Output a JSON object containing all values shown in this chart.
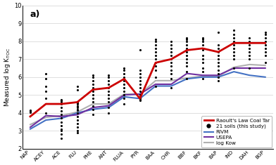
{
  "categories": [
    "NAP",
    "ACEY",
    "ACE",
    "FLU",
    "PHE",
    "ANT",
    "FLUA",
    "PYR",
    "BAA",
    "CHR",
    "BBF",
    "BKF",
    "BAP",
    "IND",
    "DAH",
    "BGP"
  ],
  "raoult_coal_tar": [
    3.8,
    4.5,
    4.5,
    4.6,
    5.3,
    5.4,
    5.9,
    4.8,
    6.8,
    7.0,
    7.5,
    7.6,
    7.4,
    7.9,
    7.9,
    7.9
  ],
  "rivm": [
    3.1,
    3.6,
    3.7,
    4.0,
    4.2,
    4.3,
    4.9,
    4.8,
    5.5,
    5.5,
    5.9,
    6.0,
    6.0,
    6.3,
    6.1,
    6.0
  ],
  "usepa": [
    3.2,
    3.85,
    3.8,
    3.9,
    4.3,
    4.4,
    5.0,
    5.05,
    5.6,
    5.6,
    6.2,
    6.1,
    6.1,
    6.5,
    6.5,
    6.5
  ],
  "log_kow": [
    3.35,
    3.75,
    3.85,
    4.05,
    4.5,
    4.5,
    5.05,
    5.05,
    5.8,
    5.8,
    5.95,
    6.05,
    6.05,
    6.55,
    6.7,
    6.65
  ],
  "soil_data": {
    "NAP": [
      4.05,
      4.1,
      4.15
    ],
    "ACEY": [
      4.0,
      4.8,
      5.2,
      5.5,
      5.9,
      6.2
    ],
    "ACE": [
      2.6,
      2.8,
      3.0,
      3.1,
      3.3,
      3.5,
      3.7,
      3.9,
      4.1,
      4.3,
      4.5,
      4.6,
      4.7,
      4.75
    ],
    "FLU": [
      2.9,
      3.0,
      3.2,
      3.4,
      3.6,
      3.8,
      4.0,
      4.15,
      4.2,
      4.3,
      4.4,
      4.5,
      4.55,
      4.6,
      5.3,
      5.5
    ],
    "PHE": [
      3.9,
      4.2,
      4.4,
      4.6,
      4.8,
      5.0,
      5.2,
      5.4,
      5.6,
      5.8,
      6.0,
      6.1
    ],
    "ANT": [
      4.0,
      4.3,
      4.6,
      4.8,
      5.0,
      5.2,
      5.4,
      5.6,
      5.8,
      6.0,
      6.1
    ],
    "FLUA": [
      4.5,
      4.8,
      5.0,
      5.2,
      5.4,
      5.6,
      5.8,
      6.0,
      6.2,
      6.4,
      6.5
    ],
    "PYR": [
      4.7,
      4.75,
      4.8,
      4.9,
      5.0,
      5.2,
      5.4,
      5.6,
      5.8,
      6.0,
      6.2,
      6.4,
      7.5
    ],
    "BAA": [
      5.5,
      6.0,
      6.4,
      6.6,
      6.8,
      7.0,
      7.2,
      7.4,
      7.6,
      7.8,
      8.0,
      8.1
    ],
    "CHR": [
      5.4,
      5.9,
      6.2,
      6.4,
      6.6,
      6.8,
      7.0,
      7.2,
      7.4,
      7.6,
      7.8,
      8.0
    ],
    "BBF": [
      5.9,
      6.3,
      6.6,
      6.8,
      7.0,
      7.2,
      7.4,
      7.6,
      7.8,
      8.0,
      8.1,
      8.2
    ],
    "BKF": [
      5.9,
      6.3,
      6.5,
      6.8,
      7.0,
      7.2,
      7.5,
      7.8,
      8.0,
      8.1,
      8.2
    ],
    "BAP": [
      5.8,
      6.0,
      6.2,
      6.4,
      6.6,
      6.8,
      7.0,
      7.2,
      7.4,
      7.6,
      7.8,
      8.5
    ],
    "IND": [
      6.5,
      7.0,
      7.2,
      7.4,
      7.6,
      7.8,
      8.0,
      8.2,
      8.4,
      8.6
    ],
    "DAH": [
      6.5,
      7.0,
      7.2,
      7.4,
      7.6,
      7.8,
      8.0,
      8.2
    ],
    "BGP": [
      6.8,
      7.2,
      7.4,
      7.6,
      7.8,
      8.0,
      8.2,
      8.4,
      8.5
    ]
  },
  "ylabel": "Measured log K$_\\mathrm{TOC}$",
  "annotation": "a)",
  "ylim": [
    2,
    10
  ],
  "yticks": [
    2,
    3,
    4,
    5,
    6,
    7,
    8,
    9,
    10
  ],
  "line_colors": {
    "raoult": "#cc0000",
    "rivm": "#4472c4",
    "usepa": "#7030a0",
    "log_kow": "#b0b0b0"
  },
  "background_color": "#ffffff",
  "grid_color": "#d9d9d9"
}
